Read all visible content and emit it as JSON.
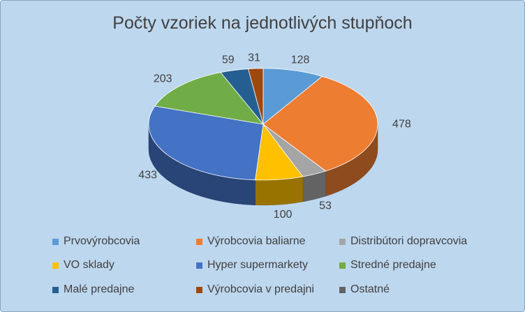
{
  "chart_data": {
    "type": "pie",
    "title": "Počty vzoriek na jednotlivých stupňoch",
    "three_d": true,
    "legend_position": "bottom",
    "slices": [
      {
        "label": "Prvovýrobcovia",
        "value": 128,
        "color": "#5b9bd5"
      },
      {
        "label": "Výrobcovia baliarne",
        "value": 478,
        "color": "#ed7d31"
      },
      {
        "label": "Distribútori dopravcovia",
        "value": 53,
        "color": "#a5a5a5"
      },
      {
        "label": "VO sklady",
        "value": 100,
        "color": "#ffc000"
      },
      {
        "label": "Hyper supermarkety",
        "value": 433,
        "color": "#4472c4"
      },
      {
        "label": "Stredné predajne",
        "value": 203,
        "color": "#70ad47"
      },
      {
        "label": "Malé predajne",
        "value": 59,
        "color": "#255e91"
      },
      {
        "label": "Výrobcovia v predajni",
        "value": 31,
        "color": "#9e480e"
      },
      {
        "label": "Ostatné",
        "value": 0,
        "color": "#636363"
      }
    ]
  }
}
